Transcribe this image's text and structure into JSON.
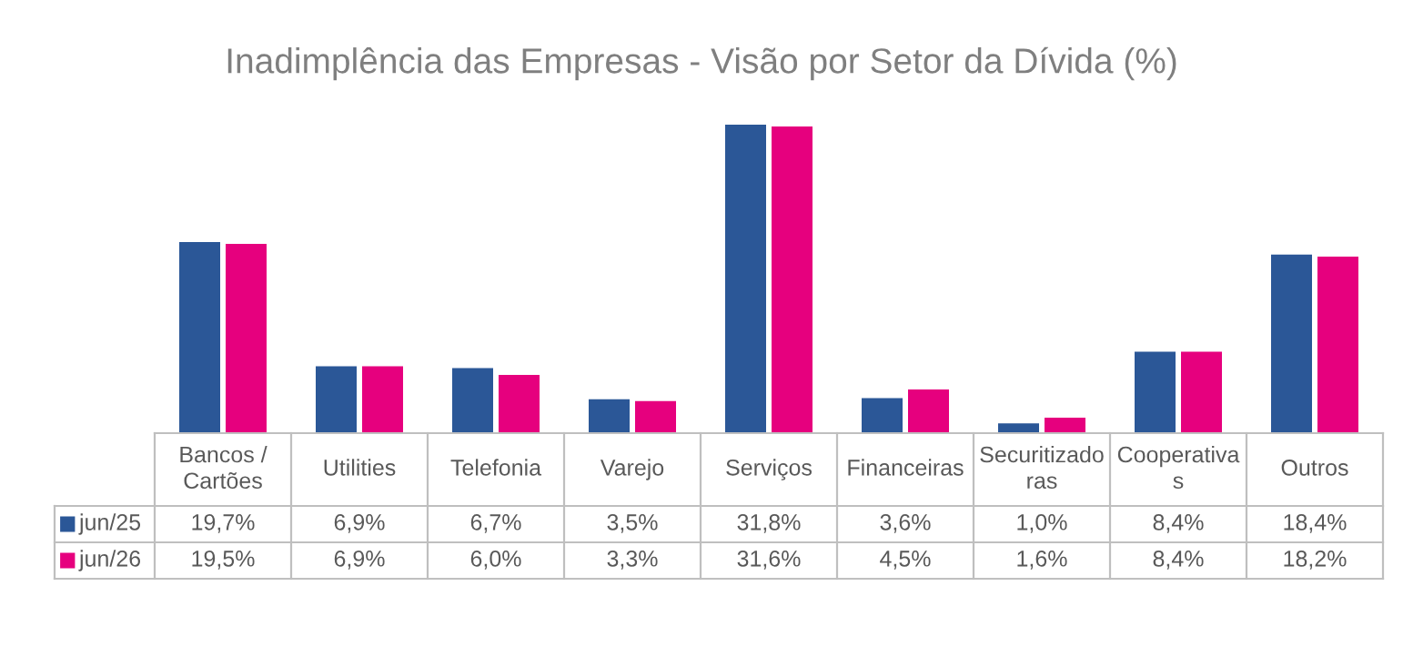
{
  "chart_data": {
    "type": "bar",
    "title": "Inadimplência das Empresas - Visão por Setor da Dívida (%)",
    "categories": [
      "Bancos /\nCartões",
      "Utilities",
      "Telefonia",
      "Varejo",
      "Serviços",
      "Financeiras",
      "Securitizado\nras",
      "Cooperativa\ns",
      "Outros"
    ],
    "series": [
      {
        "name": "jun/25",
        "color": "#2b5797",
        "values": [
          19.7,
          6.9,
          6.7,
          3.5,
          31.8,
          3.6,
          1.0,
          8.4,
          18.4
        ],
        "value_labels": [
          "19,7%",
          "6,9%",
          "6,7%",
          "3,5%",
          "31,8%",
          "3,6%",
          "1,0%",
          "8,4%",
          "18,4%"
        ]
      },
      {
        "name": "jun/26",
        "color": "#e6007e",
        "values": [
          19.5,
          6.9,
          6.0,
          3.3,
          31.6,
          4.5,
          1.6,
          8.4,
          18.2
        ],
        "value_labels": [
          "19,5%",
          "6,9%",
          "6,0%",
          "3,3%",
          "31,6%",
          "4,5%",
          "1,6%",
          "8,4%",
          "18,2%"
        ]
      }
    ],
    "legend": "bottom left"
  }
}
